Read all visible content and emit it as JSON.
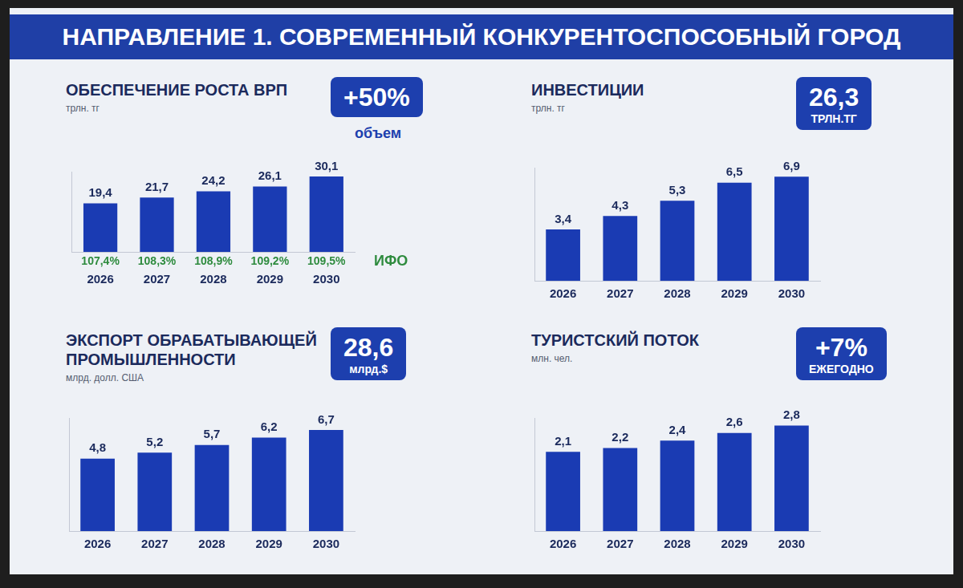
{
  "title": "НАПРАВЛЕНИЕ 1. СОВРЕМЕННЫЙ КОНКУРЕНТОСПОСОБНЫЙ ГОРОД",
  "chart_data": [
    {
      "type": "bar",
      "title": "ОБЕСПЕЧЕНИЕ РОСТА ВРП",
      "subtitle": "трлн. тг",
      "badge": [
        "+50%"
      ],
      "badge_caption": "объем",
      "categories": [
        "2026",
        "2027",
        "2028",
        "2029",
        "2030"
      ],
      "values": [
        19.4,
        21.7,
        24.2,
        26.1,
        30.1
      ],
      "value_labels": [
        "19,4",
        "21,7",
        "24,2",
        "26,1",
        "30,1"
      ],
      "growth_labels": [
        "107,4%",
        "108,3%",
        "108,9%",
        "109,2%",
        "109,5%"
      ],
      "growth_caption": "ИФО",
      "color": "#1a3bb3",
      "ylim": [
        0,
        32
      ],
      "data_labels": true,
      "tick_labels": "x",
      "grid": false
    },
    {
      "type": "bar",
      "title": "ИНВЕСТИЦИИ",
      "subtitle": "трлн. тг",
      "badge": [
        "26,3",
        "ТРЛН.ТГ"
      ],
      "categories": [
        "2026",
        "2027",
        "2028",
        "2029",
        "2030"
      ],
      "values": [
        3.4,
        4.3,
        5.3,
        6.5,
        6.9
      ],
      "value_labels": [
        "3,4",
        "4,3",
        "5,3",
        "6,5",
        "6,9"
      ],
      "color": "#1a3bb3",
      "ylim": [
        0,
        7.5
      ],
      "data_labels": true,
      "tick_labels": "x",
      "grid": false
    },
    {
      "type": "bar",
      "title": "ЭКСПОРТ ОБРАБАТЫВАЮЩЕЙ ПРОМЫШЛЕННОСТИ",
      "subtitle": "млрд. долл. США",
      "badge": [
        "28,6",
        "млрд.$"
      ],
      "categories": [
        "2026",
        "2027",
        "2028",
        "2029",
        "2030"
      ],
      "values": [
        4.8,
        5.2,
        5.7,
        6.2,
        6.7
      ],
      "value_labels": [
        "4,8",
        "5,2",
        "5,7",
        "6,2",
        "6,7"
      ],
      "color": "#1a3bb3",
      "ylim": [
        0,
        7.5
      ],
      "data_labels": true,
      "tick_labels": "x",
      "grid": false
    },
    {
      "type": "bar",
      "title": "ТУРИСТСКИЙ ПОТОК",
      "subtitle": "млн. чел.",
      "badge": [
        "+7%",
        "ЕЖЕГОДНО"
      ],
      "categories": [
        "2026",
        "2027",
        "2028",
        "2029",
        "2030"
      ],
      "values": [
        2.1,
        2.2,
        2.4,
        2.6,
        2.8
      ],
      "value_labels": [
        "2,1",
        "2,2",
        "2,4",
        "2,6",
        "2,8"
      ],
      "color": "#1a3bb3",
      "ylim": [
        0,
        3
      ],
      "data_labels": true,
      "tick_labels": "x",
      "grid": false
    }
  ]
}
